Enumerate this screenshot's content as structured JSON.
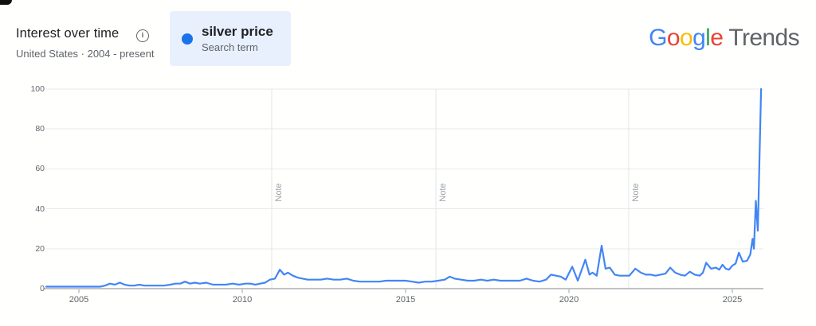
{
  "header": {
    "title": "Interest over time",
    "subtitle": "United States · 2004 - present",
    "legend": {
      "term": "silver price",
      "term_type": "Search term"
    }
  },
  "logo": {
    "letters": [
      {
        "ch": "G",
        "color": "#4285F4"
      },
      {
        "ch": "o",
        "color": "#EA4335"
      },
      {
        "ch": "o",
        "color": "#FBBC05"
      },
      {
        "ch": "g",
        "color": "#4285F4"
      },
      {
        "ch": "l",
        "color": "#34A853"
      },
      {
        "ch": "e",
        "color": "#EA4335"
      }
    ],
    "suffix": "Trends"
  },
  "colors": {
    "line": "#4285f4",
    "legend_dot": "#1a73e8",
    "legend_chip_bg": "#e8f0fe",
    "grid": "#eaeaec",
    "axis": "#80868b",
    "tick": "#9aa0a6",
    "note_line": "#e3e4e6",
    "note_text": "#9aa0a6",
    "muted_text": "#5f6368",
    "logo_suffix": "#5f6368"
  },
  "chart_data": {
    "type": "line",
    "title": "Interest over time",
    "xlabel": "",
    "ylabel": "",
    "xlim": [
      2004,
      2026
    ],
    "ylim": [
      0,
      100
    ],
    "x_ticks": [
      2005,
      2010,
      2015,
      2020,
      2025
    ],
    "y_ticks": [
      0,
      20,
      40,
      60,
      80,
      100
    ],
    "grid": true,
    "legend_position": "top",
    "notes": [
      {
        "x": 2010.9,
        "label": "Note"
      },
      {
        "x": 2015.93,
        "label": "Note"
      },
      {
        "x": 2021.83,
        "label": "Note"
      }
    ],
    "series": [
      {
        "name": "silver price",
        "color": "#4285f4",
        "points": [
          [
            2004.0,
            1
          ],
          [
            2004.15,
            1
          ],
          [
            2004.3,
            1
          ],
          [
            2004.45,
            1
          ],
          [
            2004.6,
            1
          ],
          [
            2004.75,
            1
          ],
          [
            2004.9,
            1
          ],
          [
            2005.05,
            1
          ],
          [
            2005.2,
            1
          ],
          [
            2005.35,
            1
          ],
          [
            2005.5,
            1
          ],
          [
            2005.65,
            1
          ],
          [
            2005.8,
            1.5
          ],
          [
            2005.95,
            2.5
          ],
          [
            2006.1,
            2
          ],
          [
            2006.25,
            3
          ],
          [
            2006.4,
            2
          ],
          [
            2006.55,
            1.5
          ],
          [
            2006.7,
            1.5
          ],
          [
            2006.85,
            2
          ],
          [
            2007.0,
            1.5
          ],
          [
            2007.2,
            1.5
          ],
          [
            2007.4,
            1.5
          ],
          [
            2007.6,
            1.5
          ],
          [
            2007.8,
            2
          ],
          [
            2007.95,
            2.5
          ],
          [
            2008.1,
            2.5
          ],
          [
            2008.25,
            3.5
          ],
          [
            2008.4,
            2.5
          ],
          [
            2008.55,
            3
          ],
          [
            2008.7,
            2.5
          ],
          [
            2008.9,
            3
          ],
          [
            2009.1,
            2
          ],
          [
            2009.3,
            2
          ],
          [
            2009.5,
            2
          ],
          [
            2009.7,
            2.5
          ],
          [
            2009.9,
            2
          ],
          [
            2010.1,
            2.5
          ],
          [
            2010.25,
            2.5
          ],
          [
            2010.4,
            2
          ],
          [
            2010.55,
            2.5
          ],
          [
            2010.7,
            3
          ],
          [
            2010.85,
            4.5
          ],
          [
            2011.0,
            5
          ],
          [
            2011.15,
            9.5
          ],
          [
            2011.28,
            7
          ],
          [
            2011.4,
            8
          ],
          [
            2011.55,
            6.5
          ],
          [
            2011.7,
            5.5
          ],
          [
            2011.85,
            5
          ],
          [
            2012.0,
            4.5
          ],
          [
            2012.2,
            4.5
          ],
          [
            2012.4,
            4.5
          ],
          [
            2012.6,
            5
          ],
          [
            2012.8,
            4.5
          ],
          [
            2013.0,
            4.5
          ],
          [
            2013.2,
            5
          ],
          [
            2013.4,
            4
          ],
          [
            2013.6,
            3.5
          ],
          [
            2013.8,
            3.5
          ],
          [
            2014.0,
            3.5
          ],
          [
            2014.2,
            3.5
          ],
          [
            2014.4,
            4
          ],
          [
            2014.6,
            4
          ],
          [
            2014.8,
            4
          ],
          [
            2015.0,
            4
          ],
          [
            2015.2,
            3.5
          ],
          [
            2015.4,
            3
          ],
          [
            2015.6,
            3.5
          ],
          [
            2015.8,
            3.5
          ],
          [
            2016.0,
            4
          ],
          [
            2016.2,
            4.5
          ],
          [
            2016.35,
            6
          ],
          [
            2016.5,
            5
          ],
          [
            2016.7,
            4.5
          ],
          [
            2016.9,
            4
          ],
          [
            2017.1,
            4
          ],
          [
            2017.3,
            4.5
          ],
          [
            2017.5,
            4
          ],
          [
            2017.7,
            4.5
          ],
          [
            2017.9,
            4
          ],
          [
            2018.1,
            4
          ],
          [
            2018.3,
            4
          ],
          [
            2018.5,
            4
          ],
          [
            2018.7,
            5
          ],
          [
            2018.9,
            4
          ],
          [
            2019.1,
            3.5
          ],
          [
            2019.3,
            4.5
          ],
          [
            2019.45,
            7
          ],
          [
            2019.6,
            6.5
          ],
          [
            2019.75,
            6
          ],
          [
            2019.9,
            4.5
          ],
          [
            2020.1,
            11
          ],
          [
            2020.27,
            4
          ],
          [
            2020.5,
            14.5
          ],
          [
            2020.63,
            7
          ],
          [
            2020.72,
            8
          ],
          [
            2020.85,
            6.5
          ],
          [
            2021.0,
            21.5
          ],
          [
            2021.12,
            10
          ],
          [
            2021.25,
            10.5
          ],
          [
            2021.4,
            7
          ],
          [
            2021.55,
            6.5
          ],
          [
            2021.7,
            6.5
          ],
          [
            2021.85,
            6.5
          ],
          [
            2022.03,
            10
          ],
          [
            2022.2,
            8
          ],
          [
            2022.35,
            7
          ],
          [
            2022.5,
            7
          ],
          [
            2022.65,
            6.5
          ],
          [
            2022.8,
            7
          ],
          [
            2022.95,
            7.5
          ],
          [
            2023.1,
            10.5
          ],
          [
            2023.25,
            8
          ],
          [
            2023.4,
            7
          ],
          [
            2023.55,
            6.5
          ],
          [
            2023.7,
            8.5
          ],
          [
            2023.85,
            7
          ],
          [
            2024.0,
            6.5
          ],
          [
            2024.1,
            8
          ],
          [
            2024.2,
            13
          ],
          [
            2024.35,
            10
          ],
          [
            2024.5,
            10.5
          ],
          [
            2024.6,
            9.5
          ],
          [
            2024.7,
            12
          ],
          [
            2024.8,
            10
          ],
          [
            2024.9,
            9.5
          ],
          [
            2025.0,
            11.5
          ],
          [
            2025.1,
            12.5
          ],
          [
            2025.2,
            18
          ],
          [
            2025.32,
            13.5
          ],
          [
            2025.45,
            14
          ],
          [
            2025.55,
            17
          ],
          [
            2025.62,
            25
          ],
          [
            2025.66,
            20
          ],
          [
            2025.72,
            44
          ],
          [
            2025.78,
            29
          ],
          [
            2025.88,
            100
          ]
        ]
      }
    ]
  }
}
